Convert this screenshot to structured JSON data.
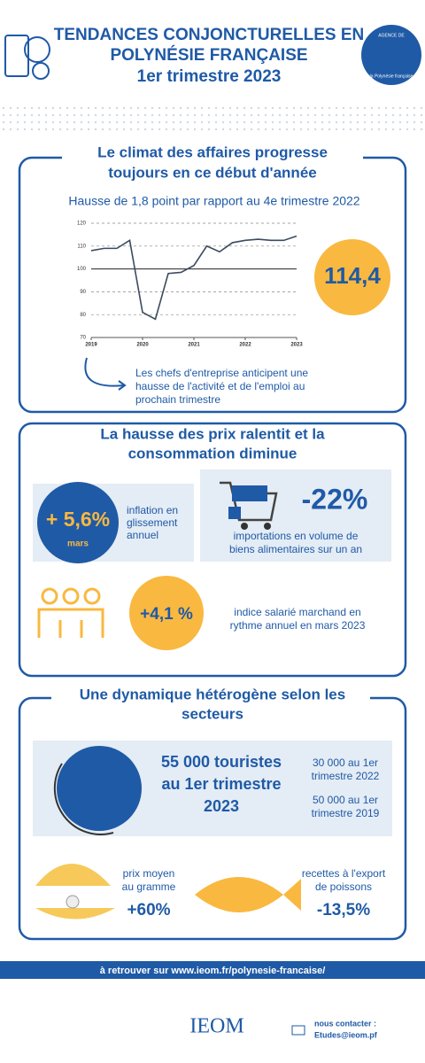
{
  "header": {
    "title": [
      "TENDANCES CONJONCTURELLES EN",
      "POLYNÉSIE FRANÇAISE",
      "1er trimestre 2023"
    ],
    "badge": [
      "AGENCE DE",
      "la Polynésie française"
    ]
  },
  "section1": {
    "title": [
      "Le climat des affaires progresse",
      "toujours en ce début d'année"
    ],
    "subtitle": "Hausse de 1,8 point par rapport au 4e trimestre 2022",
    "chart": {
      "type": "line",
      "categories": [
        "2019",
        null,
        null,
        null,
        "2020",
        null,
        null,
        null,
        "2021",
        null,
        null,
        null,
        "2022",
        null,
        null,
        null,
        "2023"
      ],
      "values": [
        108,
        109,
        109,
        112.5,
        81,
        78,
        98,
        98.5,
        101.5,
        110,
        107.5,
        111.5,
        112.5,
        113,
        112.5,
        112.5,
        114.4
      ],
      "color": "#3b4b5e",
      "ylim": [
        70,
        120
      ],
      "yticks": [
        70,
        80,
        90,
        100,
        110,
        120
      ],
      "baseline": 100,
      "grid": true
    },
    "highlight": "114,4",
    "note": [
      "Les chefs d'entreprise anticipent une",
      "hausse de l'activité et de l'emploi au",
      "prochain trimestre"
    ]
  },
  "section2": {
    "title": [
      "La hausse des prix ralentit et la",
      "consommation diminue"
    ],
    "inflation": {
      "value": "+ 5,6%",
      "sub": "mars",
      "label": [
        "inflation en",
        "glissement",
        "annuel"
      ]
    },
    "imports": {
      "value": "-22%",
      "label": [
        "importations en volume de",
        "biens alimentaires sur un an"
      ]
    },
    "salary": {
      "value": "+4,1 %",
      "label": [
        "indice salarié marchand en",
        "rythme annuel en mars 2023"
      ]
    }
  },
  "section3": {
    "title": [
      "Une dynamique hétérogène selon les",
      "secteurs"
    ],
    "tourists": {
      "value": [
        "55 000 touristes",
        "au 1er trimestre",
        "2023"
      ],
      "compare": [
        "30 000 au 1er",
        "trimestre 2022",
        "50 000 au 1er",
        "trimestre 2019"
      ]
    },
    "pearl": {
      "label": [
        "prix moyen",
        "au gramme"
      ],
      "value": "+60%"
    },
    "fish": {
      "label": [
        "recettes à l'export",
        "de poissons"
      ],
      "value": "-13,5%"
    }
  },
  "footer": {
    "link": "à retrouver sur www.ieom.fr/polynesie-francaise/",
    "logo": "IEOM",
    "contact": [
      "nous contacter :",
      "Etudes@ieom.pf"
    ]
  }
}
